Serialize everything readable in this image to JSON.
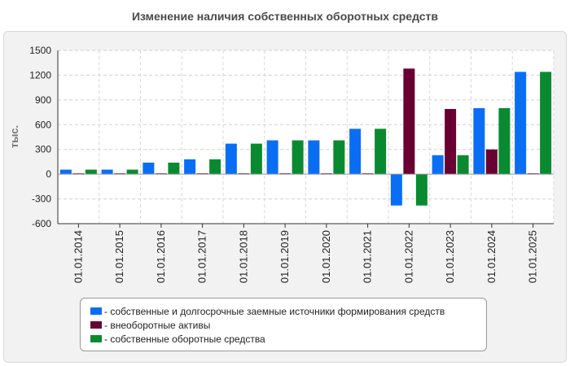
{
  "colors": {
    "series1": "#0a6ef5",
    "series2": "#6a0032",
    "series3": "#0a8a30"
  },
  "chart_data": {
    "type": "bar",
    "title": "Изменение наличия собственных оборотных средств",
    "ylabel": "тыс.",
    "xlabel": "",
    "ylim": [
      -600,
      1500
    ],
    "yticks": [
      -600,
      -300,
      0,
      300,
      600,
      900,
      1200,
      1500
    ],
    "categories": [
      "01.01.2014",
      "01.01.2015",
      "01.01.2016",
      "01.01.2017",
      "01.01.2018",
      "01.01.2019",
      "01.01.2020",
      "01.01.2021",
      "01.01.2022",
      "01.01.2023",
      "01.01.2024",
      "01.01.2025"
    ],
    "series": [
      {
        "name": "- собственные и долгосрочные заемные источники формирования средств",
        "values": [
          55,
          55,
          140,
          180,
          370,
          410,
          410,
          550,
          -380,
          230,
          800,
          1240
        ]
      },
      {
        "name": "- внеоборотные активы",
        "values": [
          10,
          10,
          10,
          10,
          10,
          10,
          10,
          10,
          1280,
          790,
          300,
          10
        ]
      },
      {
        "name": "- собственные оборотные средства",
        "values": [
          55,
          55,
          140,
          180,
          370,
          410,
          410,
          550,
          -380,
          230,
          800,
          1240
        ]
      }
    ],
    "legend_position": "bottom"
  }
}
